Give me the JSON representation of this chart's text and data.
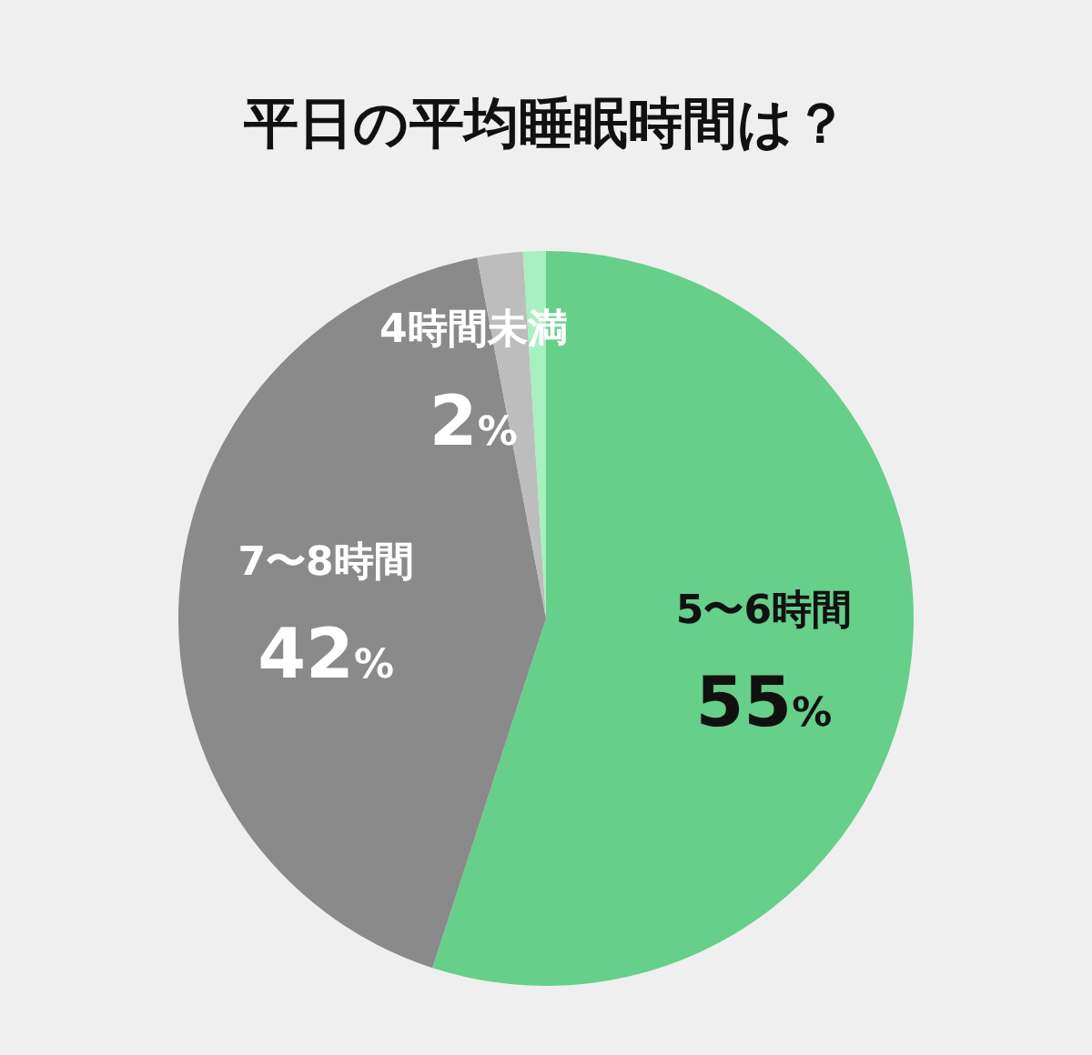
{
  "chart_data": {
    "type": "pie",
    "title": "平日の平均睡眠時間は？",
    "categories": [
      "5〜6時間",
      "7〜8時間",
      "4時間未満",
      null
    ],
    "values": [
      55,
      42,
      2,
      1
    ],
    "colors": [
      "#66cf8a",
      "#8a8a8a",
      "#bdbdbd",
      "#a8f0c0"
    ],
    "value_labels": [
      "55%",
      "42%",
      "2%",
      null
    ],
    "legend": false
  }
}
